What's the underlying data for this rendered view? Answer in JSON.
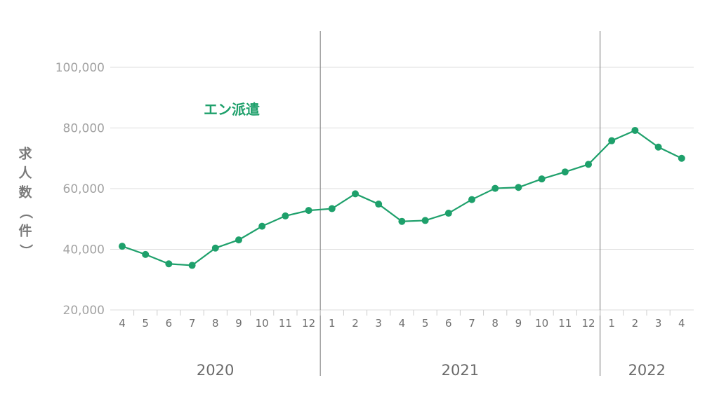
{
  "chart_data": {
    "type": "line",
    "ylabel": "求人数（件）",
    "ylim": [
      20000,
      110000
    ],
    "y_ticks": [
      20000,
      40000,
      60000,
      80000,
      100000
    ],
    "y_tick_labels": [
      "20,000",
      "40,000",
      "60,000",
      "80,000",
      "100,000"
    ],
    "grid": true,
    "x_labels": [
      "4",
      "5",
      "6",
      "7",
      "8",
      "9",
      "10",
      "11",
      "12",
      "1",
      "2",
      "3",
      "4",
      "5",
      "6",
      "7",
      "8",
      "9",
      "10",
      "11",
      "12",
      "1",
      "2",
      "3",
      "4"
    ],
    "year_groups": [
      {
        "label": "2020",
        "start": 0,
        "end": 8
      },
      {
        "label": "2021",
        "start": 9,
        "end": 20
      },
      {
        "label": "2022",
        "start": 21,
        "end": 24
      }
    ],
    "series": [
      {
        "name": "エン派遣",
        "color": "#1ea06b",
        "values": [
          41000,
          38300,
          35200,
          34700,
          40400,
          43100,
          47600,
          51000,
          52800,
          53400,
          58300,
          54900,
          49200,
          49500,
          51900,
          56400,
          60100,
          60400,
          63200,
          65500,
          68000,
          75800,
          79200,
          73700,
          70000
        ]
      }
    ]
  }
}
